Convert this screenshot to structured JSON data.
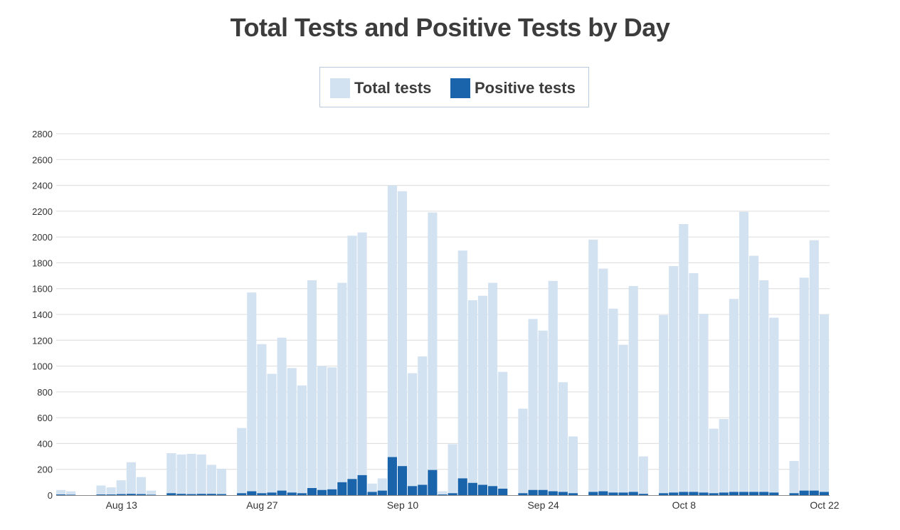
{
  "chart_data": {
    "type": "bar",
    "title": "Total Tests and Positive Tests by Day",
    "xlabel": "",
    "ylabel": "",
    "ylim": [
      0,
      2800
    ],
    "yticks": [
      0,
      200,
      400,
      600,
      800,
      1000,
      1200,
      1400,
      1600,
      1800,
      2000,
      2200,
      2400,
      2600,
      2800
    ],
    "grid": true,
    "legend_position": "top-center",
    "x_start": "Aug 7",
    "x_end": "Oct 22",
    "xtick_labels": [
      {
        "label": "Aug 13",
        "index": 6
      },
      {
        "label": "Aug 27",
        "index": 20
      },
      {
        "label": "Sep 10",
        "index": 34
      },
      {
        "label": "Sep 24",
        "index": 48
      },
      {
        "label": "Oct 8",
        "index": 62
      },
      {
        "label": "Oct 22",
        "index": 76
      }
    ],
    "series": [
      {
        "name": "Total tests",
        "color": "#d3e2f1",
        "values": [
          40,
          30,
          0,
          0,
          75,
          60,
          115,
          255,
          140,
          35,
          0,
          325,
          315,
          320,
          315,
          235,
          205,
          0,
          520,
          1570,
          1170,
          940,
          1220,
          985,
          850,
          1665,
          1000,
          990,
          1645,
          2010,
          2035,
          90,
          130,
          2400,
          2355,
          945,
          1075,
          2190,
          30,
          395,
          1895,
          1510,
          1545,
          1645,
          955,
          0,
          670,
          1365,
          1275,
          1660,
          875,
          455,
          0,
          1980,
          1755,
          1445,
          1165,
          1620,
          300,
          0,
          1395,
          1775,
          2100,
          1720,
          1405,
          515,
          590,
          1520,
          2195,
          1855,
          1665,
          1375,
          0,
          265,
          1685,
          1975,
          1400
        ]
      },
      {
        "name": "Positive tests",
        "color": "#1a64ac",
        "values": [
          5,
          3,
          0,
          0,
          5,
          5,
          8,
          10,
          8,
          3,
          0,
          15,
          10,
          8,
          10,
          10,
          8,
          0,
          15,
          30,
          15,
          20,
          35,
          20,
          15,
          55,
          40,
          45,
          100,
          125,
          155,
          25,
          35,
          295,
          225,
          70,
          80,
          195,
          5,
          15,
          130,
          95,
          80,
          70,
          50,
          0,
          15,
          40,
          40,
          30,
          25,
          15,
          0,
          25,
          30,
          20,
          20,
          25,
          10,
          0,
          15,
          20,
          25,
          25,
          20,
          15,
          20,
          25,
          25,
          25,
          25,
          20,
          0,
          15,
          35,
          35,
          25
        ]
      }
    ]
  }
}
